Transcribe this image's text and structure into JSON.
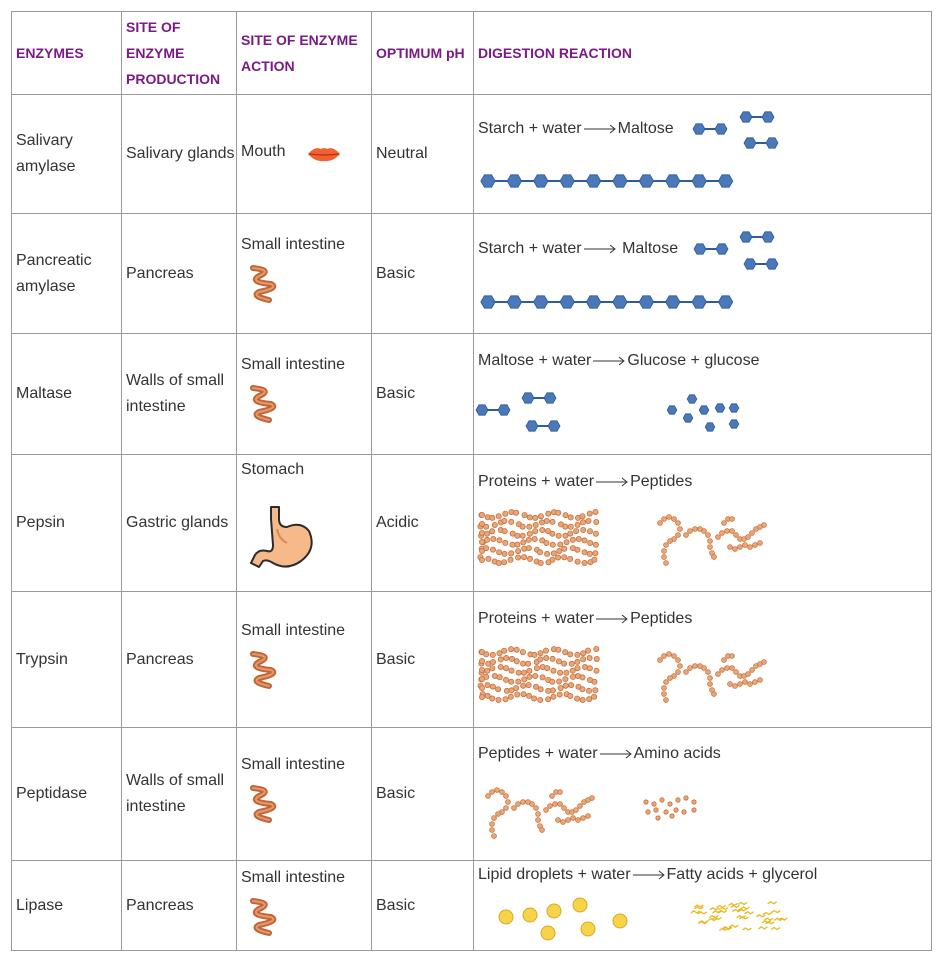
{
  "headers": {
    "enzymes": "ENZYMES",
    "site_production": "SITE OF ENZYME PRODUCTION",
    "site_action": "SITE OF ENZYME ACTION",
    "optimum_ph": "OPTIMUM pH",
    "reaction": "DIGESTION REACTION"
  },
  "rows": [
    {
      "enzyme": "Salivary amylase",
      "production": "Salivary glands",
      "action": "Mouth",
      "action_icon": "lips-icon",
      "ph": "Neutral",
      "reactant": "Starch + water",
      "product": "Maltose"
    },
    {
      "enzyme": "Pancreatic amylase",
      "production": "Pancreas",
      "action": "Small intestine",
      "action_icon": "intestine-icon",
      "ph": "Basic",
      "reactant": "Starch + water",
      "product": "Maltose"
    },
    {
      "enzyme": "Maltase",
      "production": "Walls of small intestine",
      "action": "Small intestine",
      "action_icon": "intestine-icon",
      "ph": "Basic",
      "reactant": "Maltose + water",
      "product": "Glucose + glucose"
    },
    {
      "enzyme": "Pepsin",
      "production": "Gastric glands",
      "action": "Stomach",
      "action_icon": "stomach-icon",
      "ph": "Acidic",
      "reactant": "Proteins + water",
      "product": "Peptides"
    },
    {
      "enzyme": "Trypsin",
      "production": "Pancreas",
      "action": "Small intestine",
      "action_icon": "intestine-icon",
      "ph": "Basic",
      "reactant": "Proteins + water",
      "product": "Peptides"
    },
    {
      "enzyme": "Peptidase",
      "production": "Walls of small intestine",
      "action": "Small intestine",
      "action_icon": "intestine-icon",
      "ph": "Basic",
      "reactant": "Peptides + water",
      "product": "Amino acids"
    },
    {
      "enzyme": "Lipase",
      "production": "Pancreas",
      "action": "Small intestine",
      "action_icon": "intestine-icon",
      "ph": "Basic",
      "reactant": "Lipid droplets + water",
      "product": "Fatty acids + glycerol"
    }
  ],
  "colors": {
    "header_text": "#7b1a86",
    "hexagon": "#4a78b8",
    "protein": "#e8a77a",
    "protein_stroke": "#c9703c",
    "intestine": "#c0673a",
    "lips": "#f06030",
    "stomach": "#f6b98a",
    "fat": "#f7d34a"
  }
}
